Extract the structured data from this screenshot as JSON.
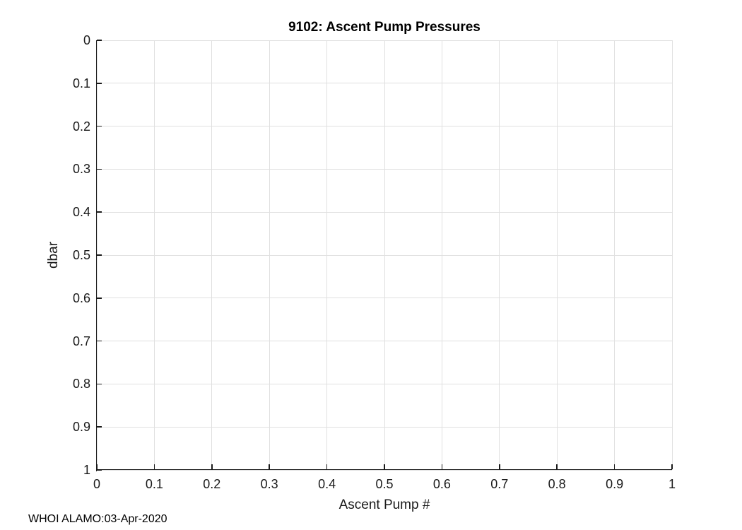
{
  "figure": {
    "footer": "WHOI ALAMO:03-Apr-2020"
  },
  "chart_data": {
    "type": "scatter",
    "title": "9102: Ascent Pump Pressures",
    "xlabel": "Ascent Pump #",
    "ylabel": "dbar",
    "xlim": [
      0,
      1
    ],
    "ylim": [
      0,
      1
    ],
    "y_axis_reversed": true,
    "grid": true,
    "legend": null,
    "series": [],
    "xticks": {
      "values": [
        0,
        0.1,
        0.2,
        0.3,
        0.4,
        0.5,
        0.6,
        0.7,
        0.8,
        0.9,
        1
      ],
      "labels": [
        "0",
        "0.1",
        "0.2",
        "0.3",
        "0.4",
        "0.5",
        "0.6",
        "0.7",
        "0.8",
        "0.9",
        "1"
      ]
    },
    "yticks": {
      "values": [
        0,
        0.1,
        0.2,
        0.3,
        0.4,
        0.5,
        0.6,
        0.7,
        0.8,
        0.9,
        1
      ],
      "labels": [
        "0",
        "0.1",
        "0.2",
        "0.3",
        "0.4",
        "0.5",
        "0.6",
        "0.7",
        "0.8",
        "0.9",
        "1"
      ]
    },
    "annotation": "WHOI ALAMO:03-Apr-2020",
    "colors": {
      "background": "#ffffff",
      "axis": "#1a1a1a",
      "grid": "#e0e0e0",
      "text": "#1a1a1a",
      "title": "#000000"
    }
  }
}
